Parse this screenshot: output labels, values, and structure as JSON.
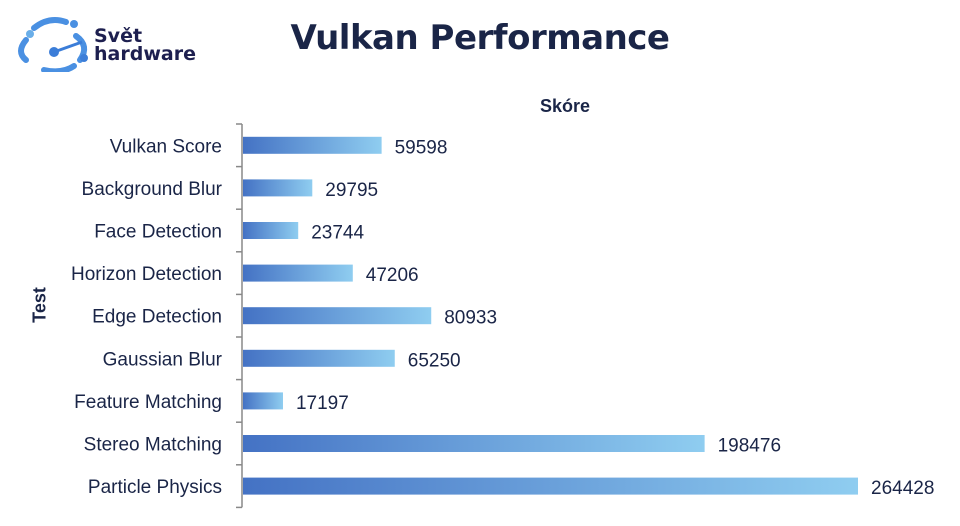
{
  "logo": {
    "line1": "Svět",
    "line2": "hardware"
  },
  "chart_data": {
    "type": "bar",
    "orientation": "horizontal",
    "title": "Vulkan Performance",
    "xlabel": "Skóre",
    "ylabel": "Test",
    "categories": [
      "Vulkan Score",
      "Background Blur",
      "Face Detection",
      "Horizon Detection",
      "Edge Detection",
      "Gaussian Blur",
      "Feature Matching",
      "Stereo Matching",
      "Particle Physics"
    ],
    "values": [
      59598,
      29795,
      23744,
      47206,
      80933,
      65250,
      17197,
      198476,
      264428
    ],
    "data_labels": true,
    "grid": false,
    "colors": {
      "bar_start": "#4472c4",
      "bar_end": "#8fcdf0",
      "text": "#1a2547"
    }
  }
}
